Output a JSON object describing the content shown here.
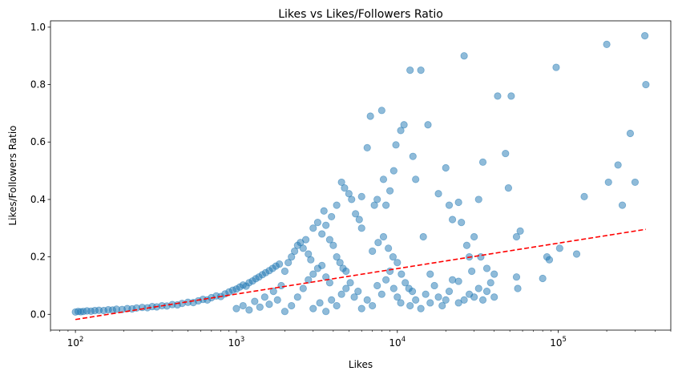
{
  "chart_data": {
    "type": "scatter",
    "title": "Likes vs Likes/Followers Ratio",
    "xlabel": "Likes",
    "ylabel": "Likes/Followers Ratio",
    "xscale": "log",
    "xlim": [
      70,
      500000
    ],
    "ylim": [
      -0.055,
      1.022
    ],
    "x_major_ticks": [
      {
        "value": 100,
        "base": "10",
        "exp": "2"
      },
      {
        "value": 1000,
        "base": "10",
        "exp": "3"
      },
      {
        "value": 10000,
        "base": "10",
        "exp": "4"
      },
      {
        "value": 100000,
        "base": "10",
        "exp": "5"
      }
    ],
    "y_ticks": [
      {
        "value": 0.0,
        "label": "0.0"
      },
      {
        "value": 0.2,
        "label": "0.2"
      },
      {
        "value": 0.4,
        "label": "0.4"
      },
      {
        "value": 0.6,
        "label": "0.6"
      },
      {
        "value": 0.8,
        "label": "0.8"
      },
      {
        "value": 1.0,
        "label": "1.0"
      }
    ],
    "grid": false,
    "series": [
      {
        "type": "scatter",
        "color": "#1f77b4",
        "alpha": 0.5,
        "points": [
          [
            100,
            0.008
          ],
          [
            104,
            0.01
          ],
          [
            108,
            0.009
          ],
          [
            112,
            0.01
          ],
          [
            118,
            0.012
          ],
          [
            125,
            0.011
          ],
          [
            132,
            0.013
          ],
          [
            140,
            0.014
          ],
          [
            150,
            0.013
          ],
          [
            160,
            0.016
          ],
          [
            170,
            0.015
          ],
          [
            180,
            0.018
          ],
          [
            195,
            0.017
          ],
          [
            210,
            0.02
          ],
          [
            225,
            0.019
          ],
          [
            240,
            0.022
          ],
          [
            260,
            0.024
          ],
          [
            280,
            0.023
          ],
          [
            300,
            0.027
          ],
          [
            320,
            0.026
          ],
          [
            345,
            0.03
          ],
          [
            370,
            0.029
          ],
          [
            400,
            0.034
          ],
          [
            430,
            0.033
          ],
          [
            460,
            0.038
          ],
          [
            500,
            0.042
          ],
          [
            540,
            0.041
          ],
          [
            580,
            0.047
          ],
          [
            620,
            0.052
          ],
          [
            660,
            0.05
          ],
          [
            700,
            0.058
          ],
          [
            750,
            0.064
          ],
          [
            800,
            0.062
          ],
          [
            850,
            0.071
          ],
          [
            900,
            0.078
          ],
          [
            950,
            0.084
          ],
          [
            1000,
            0.088
          ],
          [
            1050,
            0.095
          ],
          [
            1100,
            0.102
          ],
          [
            1150,
            0.098
          ],
          [
            1200,
            0.11
          ],
          [
            1260,
            0.116
          ],
          [
            1320,
            0.124
          ],
          [
            1380,
            0.13
          ],
          [
            1450,
            0.138
          ],
          [
            1520,
            0.145
          ],
          [
            1600,
            0.152
          ],
          [
            1680,
            0.16
          ],
          [
            1760,
            0.168
          ],
          [
            1850,
            0.175
          ],
          [
            1000,
            0.02
          ],
          [
            1100,
            0.03
          ],
          [
            1200,
            0.015
          ],
          [
            1300,
            0.045
          ],
          [
            1400,
            0.025
          ],
          [
            1500,
            0.06
          ],
          [
            1600,
            0.035
          ],
          [
            1700,
            0.08
          ],
          [
            1800,
            0.05
          ],
          [
            1900,
            0.1
          ],
          [
            2000,
            0.15
          ],
          [
            2100,
            0.18
          ],
          [
            2200,
            0.2
          ],
          [
            2300,
            0.22
          ],
          [
            2400,
            0.24
          ],
          [
            2500,
            0.25
          ],
          [
            2600,
            0.23
          ],
          [
            2700,
            0.26
          ],
          [
            2800,
            0.21
          ],
          [
            2900,
            0.19
          ],
          [
            2000,
            0.01
          ],
          [
            2200,
            0.03
          ],
          [
            2400,
            0.06
          ],
          [
            2600,
            0.09
          ],
          [
            2800,
            0.12
          ],
          [
            3000,
            0.14
          ],
          [
            3200,
            0.16
          ],
          [
            3400,
            0.17
          ],
          [
            3600,
            0.13
          ],
          [
            3800,
            0.11
          ],
          [
            3000,
            0.3
          ],
          [
            3200,
            0.32
          ],
          [
            3400,
            0.28
          ],
          [
            3600,
            0.31
          ],
          [
            3800,
            0.26
          ],
          [
            4000,
            0.24
          ],
          [
            4200,
            0.2
          ],
          [
            4400,
            0.18
          ],
          [
            4600,
            0.16
          ],
          [
            4800,
            0.15
          ],
          [
            3000,
            0.02
          ],
          [
            3300,
            0.04
          ],
          [
            3600,
            0.01
          ],
          [
            3900,
            0.05
          ],
          [
            4200,
            0.03
          ],
          [
            4500,
            0.07
          ],
          [
            4800,
            0.09
          ],
          [
            5100,
            0.11
          ],
          [
            5400,
            0.06
          ],
          [
            5700,
            0.08
          ],
          [
            3500,
            0.36
          ],
          [
            3900,
            0.34
          ],
          [
            4200,
            0.38
          ],
          [
            4500,
            0.46
          ],
          [
            4700,
            0.44
          ],
          [
            5000,
            0.42
          ],
          [
            5200,
            0.4
          ],
          [
            5500,
            0.35
          ],
          [
            5800,
            0.33
          ],
          [
            6000,
            0.3
          ],
          [
            6000,
            0.41
          ],
          [
            6500,
            0.58
          ],
          [
            6800,
            0.69
          ],
          [
            7200,
            0.38
          ],
          [
            7500,
            0.4
          ],
          [
            8000,
            0.71
          ],
          [
            8200,
            0.47
          ],
          [
            8500,
            0.38
          ],
          [
            9000,
            0.43
          ],
          [
            9500,
            0.5
          ],
          [
            6000,
            0.02
          ],
          [
            6500,
            0.05
          ],
          [
            7000,
            0.03
          ],
          [
            7500,
            0.1
          ],
          [
            8000,
            0.07
          ],
          [
            8500,
            0.12
          ],
          [
            9000,
            0.15
          ],
          [
            9500,
            0.09
          ],
          [
            10000,
            0.06
          ],
          [
            10500,
            0.04
          ],
          [
            7000,
            0.22
          ],
          [
            7600,
            0.25
          ],
          [
            8200,
            0.27
          ],
          [
            8800,
            0.23
          ],
          [
            9400,
            0.2
          ],
          [
            10000,
            0.18
          ],
          [
            10600,
            0.14
          ],
          [
            11200,
            0.11
          ],
          [
            11800,
            0.09
          ],
          [
            12400,
            0.08
          ],
          [
            9800,
            0.59
          ],
          [
            10500,
            0.64
          ],
          [
            11000,
            0.66
          ],
          [
            12000,
            0.85
          ],
          [
            12500,
            0.55
          ],
          [
            13000,
            0.47
          ],
          [
            14000,
            0.85
          ],
          [
            14500,
            0.27
          ],
          [
            15500,
            0.66
          ],
          [
            16000,
            0.14
          ],
          [
            12000,
            0.03
          ],
          [
            13000,
            0.05
          ],
          [
            14000,
            0.02
          ],
          [
            15000,
            0.07
          ],
          [
            16000,
            0.04
          ],
          [
            17000,
            0.1
          ],
          [
            18000,
            0.06
          ],
          [
            19000,
            0.03
          ],
          [
            20000,
            0.05
          ],
          [
            21000,
            0.08
          ],
          [
            18000,
            0.42
          ],
          [
            20000,
            0.51
          ],
          [
            21000,
            0.38
          ],
          [
            22000,
            0.33
          ],
          [
            24000,
            0.39
          ],
          [
            25000,
            0.32
          ],
          [
            26000,
            0.9
          ],
          [
            27000,
            0.24
          ],
          [
            28000,
            0.2
          ],
          [
            30000,
            0.27
          ],
          [
            22000,
            0.12
          ],
          [
            24000,
            0.04
          ],
          [
            26000,
            0.05
          ],
          [
            28000,
            0.07
          ],
          [
            30000,
            0.06
          ],
          [
            32000,
            0.09
          ],
          [
            34000,
            0.05
          ],
          [
            36000,
            0.08
          ],
          [
            38000,
            0.11
          ],
          [
            40000,
            0.06
          ],
          [
            32000,
            0.4
          ],
          [
            34000,
            0.53
          ],
          [
            42000,
            0.76
          ],
          [
            47000,
            0.56
          ],
          [
            49000,
            0.44
          ],
          [
            51000,
            0.76
          ],
          [
            55000,
            0.27
          ],
          [
            58000,
            0.29
          ],
          [
            55000,
            0.13
          ],
          [
            56000,
            0.09
          ],
          [
            33000,
            0.2
          ],
          [
            36000,
            0.16
          ],
          [
            40000,
            0.14
          ],
          [
            85000,
            0.2
          ],
          [
            88000,
            0.19
          ],
          [
            97000,
            0.86
          ],
          [
            102000,
            0.23
          ],
          [
            130000,
            0.21
          ],
          [
            145000,
            0.41
          ],
          [
            200000,
            0.94
          ],
          [
            205000,
            0.46
          ],
          [
            235000,
            0.52
          ],
          [
            250000,
            0.38
          ],
          [
            280000,
            0.63
          ],
          [
            300000,
            0.46
          ],
          [
            345000,
            0.97
          ],
          [
            350000,
            0.8
          ],
          [
            80000,
            0.125
          ],
          [
            24000,
            0.115
          ],
          [
            29000,
            0.15
          ]
        ]
      }
    ],
    "trendline": {
      "style": "dashed",
      "color": "#ff0000",
      "x": [
        100,
        350000
      ],
      "y": [
        -0.018,
        0.296
      ]
    }
  }
}
